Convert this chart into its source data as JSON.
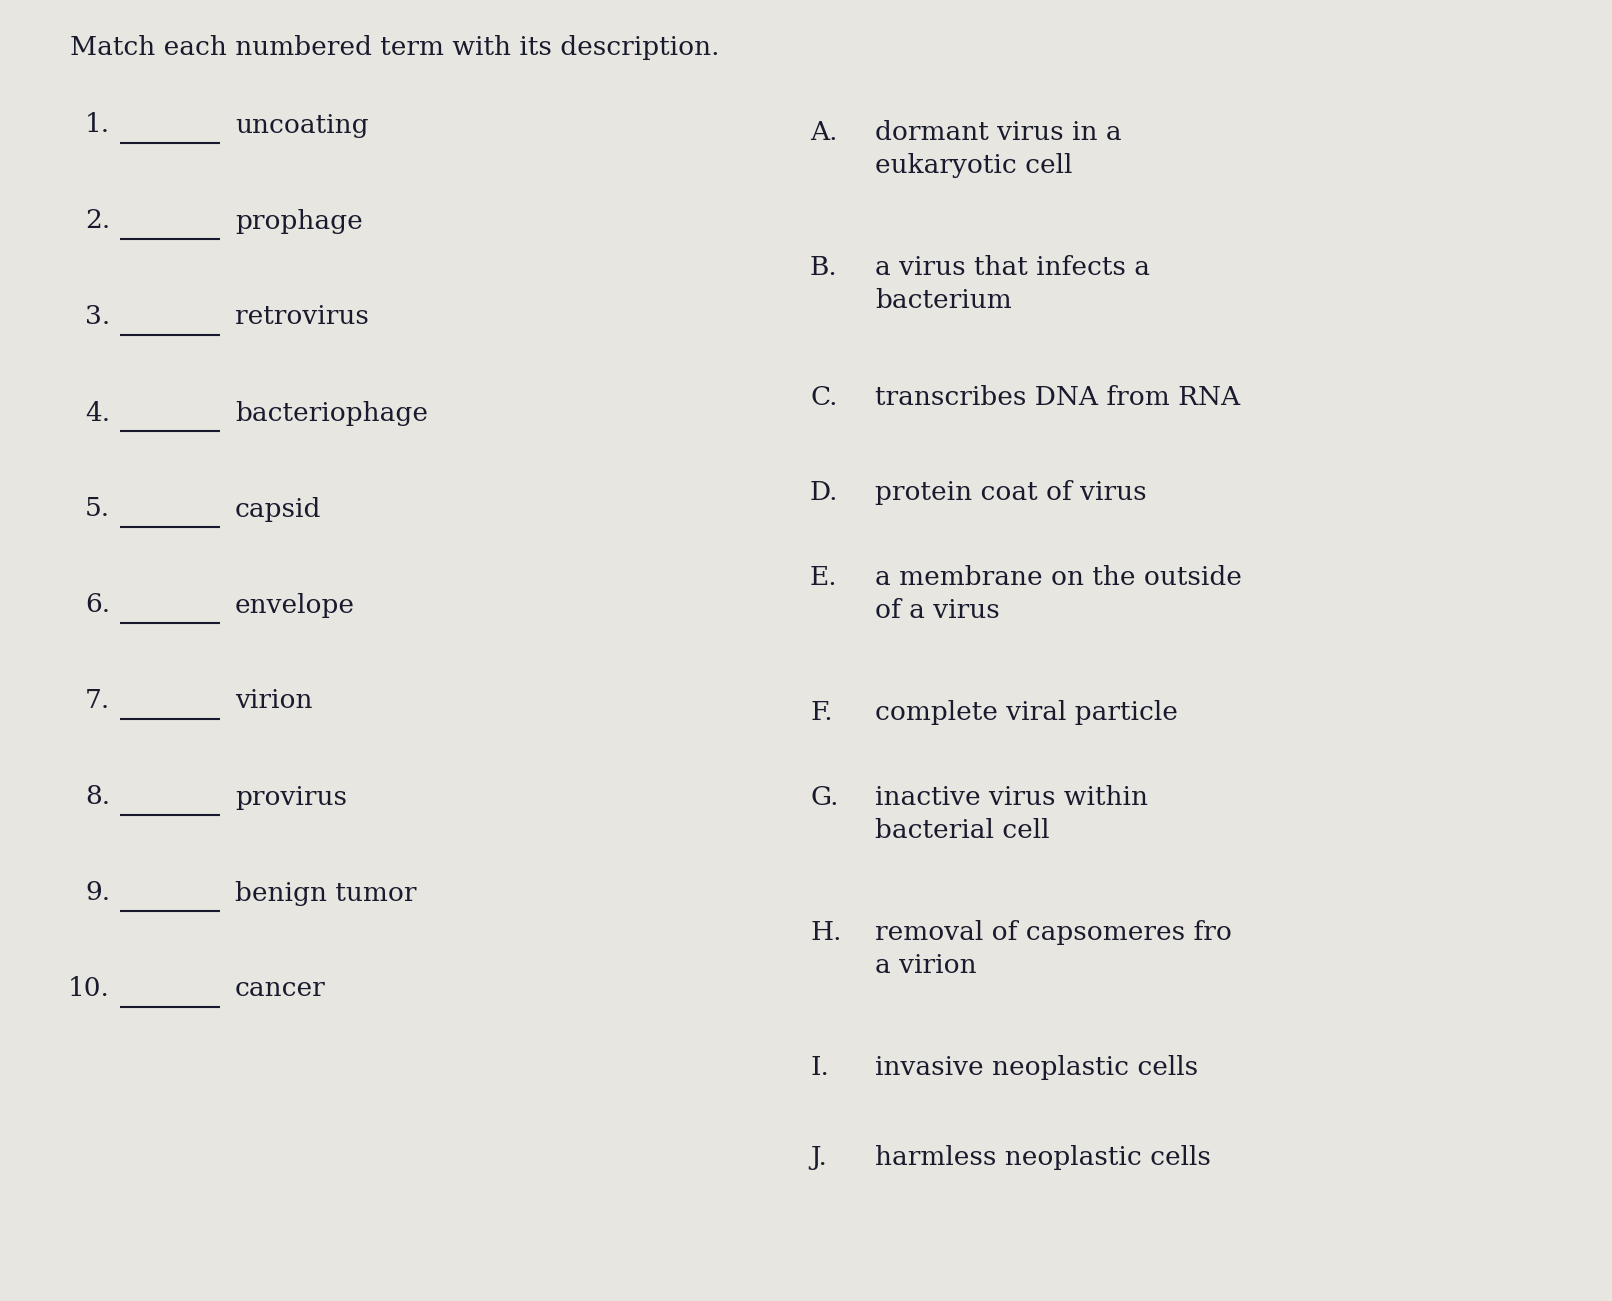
{
  "title": "Match each numbered term with its description.",
  "background_color": "#e8e6e0",
  "text_color": "#1a1a2e",
  "left_items": [
    {
      "num": "1.",
      "term": "uncoating"
    },
    {
      "num": "2.",
      "term": "prophage"
    },
    {
      "num": "3.",
      "term": "retrovirus"
    },
    {
      "num": "4.",
      "term": "bacteriophage"
    },
    {
      "num": "5.",
      "term": "capsid"
    },
    {
      "num": "6.",
      "term": "envelope"
    },
    {
      "num": "7.",
      "term": "virion"
    },
    {
      "num": "8.",
      "term": "provirus"
    },
    {
      "num": "9.",
      "term": "benign tumor"
    },
    {
      "num": "10.",
      "term": "cancer"
    }
  ],
  "right_items": [
    {
      "letter": "A.",
      "desc": "dormant virus in a\neukaryotic cell"
    },
    {
      "letter": "B.",
      "desc": "a virus that infects a\nbacterium"
    },
    {
      "letter": "C.",
      "desc": "transcribes DNA from RNA"
    },
    {
      "letter": "D.",
      "desc": "protein coat of virus"
    },
    {
      "letter": "E.",
      "desc": "a membrane on the outside\nof a virus"
    },
    {
      "letter": "F.",
      "desc": "complete viral particle"
    },
    {
      "letter": "G.",
      "desc": "inactive virus within\nbacterial cell"
    },
    {
      "letter": "H.",
      "desc": "removal of capsomeres fro\na virion"
    },
    {
      "letter": "I.",
      "desc": "invasive neoplastic cells"
    },
    {
      "letter": "J.",
      "desc": "harmless neoplastic cells"
    }
  ],
  "title_fontsize": 19,
  "item_fontsize": 19,
  "line_color": "#1a1a2e",
  "line_width": 1.5
}
